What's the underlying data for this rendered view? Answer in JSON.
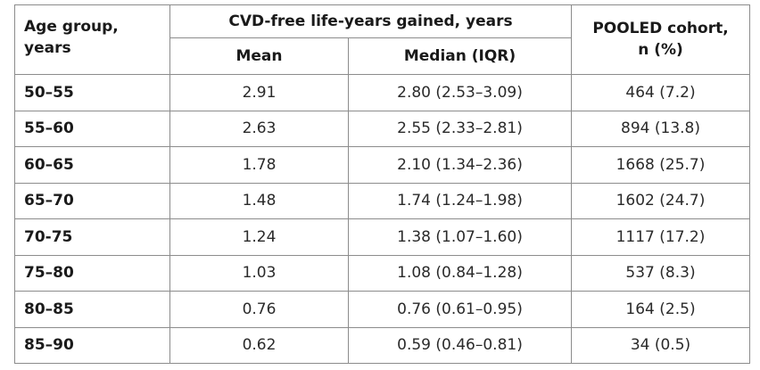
{
  "table": {
    "headers": {
      "age_group_line1": "Age group,",
      "age_group_line2": "years",
      "cvd_group": "CVD-free life-years gained, years",
      "mean": "Mean",
      "median": "Median (IQR)",
      "pooled_line1": "POOLED cohort,",
      "pooled_line2": "n (%)"
    },
    "rows": [
      {
        "age": "50–55",
        "mean": "2.91",
        "median": "2.80 (2.53–3.09)",
        "pooled": "464 (7.2)"
      },
      {
        "age": "55–60",
        "mean": "2.63",
        "median": "2.55 (2.33–2.81)",
        "pooled": "894 (13.8)"
      },
      {
        "age": "60–65",
        "mean": "1.78",
        "median": "2.10 (1.34–2.36)",
        "pooled": "1668 (25.7)"
      },
      {
        "age": "65–70",
        "mean": "1.48",
        "median": "1.74 (1.24–1.98)",
        "pooled": "1602 (24.7)"
      },
      {
        "age": "70-75",
        "mean": "1.24",
        "median": "1.38 (1.07–1.60)",
        "pooled": "1117 (17.2)"
      },
      {
        "age": "75–80",
        "mean": "1.03",
        "median": "1.08 (0.84–1.28)",
        "pooled": "537 (8.3)"
      },
      {
        "age": "80–85",
        "mean": "0.76",
        "median": "0.76 (0.61–0.95)",
        "pooled": "164 (2.5)"
      },
      {
        "age": "85–90",
        "mean": "0.62",
        "median": "0.59 (0.46–0.81)",
        "pooled": "34 (0.5)"
      }
    ]
  }
}
